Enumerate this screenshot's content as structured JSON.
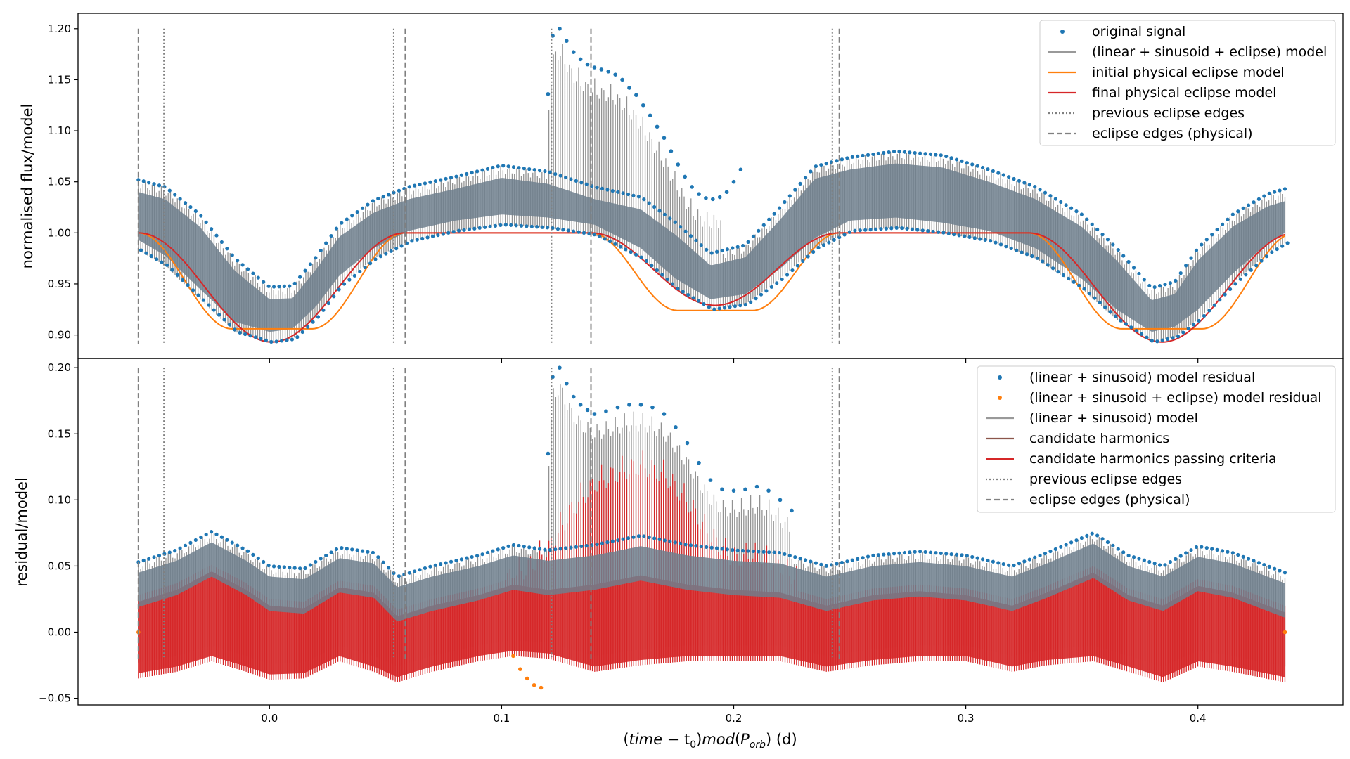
{
  "figure": {
    "xlabel": "(time − t₀)mod(P_orb) (d)",
    "xlabel_parts": {
      "pre": "(",
      "time": "time",
      "minus": " − t",
      "sub0": "0",
      "mid": ")",
      "mod": "mod",
      "open": "(",
      "P": "P",
      "orb": "orb",
      "close": ")",
      "unit": " (d)"
    }
  },
  "chart_data": [
    {
      "type": "line",
      "panel": "top",
      "ylabel": "normalised flux/model",
      "xlim": [
        -0.0825,
        0.4625
      ],
      "ylim": [
        0.877,
        1.215
      ],
      "xticks": [
        0.0,
        0.1,
        0.2,
        0.3,
        0.4
      ],
      "xtick_labels": [
        "0.0",
        "0.1",
        "0.2",
        "0.3",
        "0.4"
      ],
      "yticks": [
        0.9,
        0.95,
        1.0,
        1.05,
        1.1,
        1.15,
        1.2
      ],
      "ytick_labels": [
        "0.90",
        "0.95",
        "1.00",
        "1.05",
        "1.10",
        "1.15",
        "1.20"
      ],
      "grid": false,
      "legend_position": "top-right",
      "legend": [
        {
          "label": "original signal",
          "kind": "dot",
          "color": "#1f77b4"
        },
        {
          "label": "(linear + sinusoid + eclipse) model",
          "kind": "line",
          "color": "#999999"
        },
        {
          "label": "initial physical eclipse model",
          "kind": "line",
          "color": "#ff7f0e"
        },
        {
          "label": "final physical eclipse model",
          "kind": "line",
          "color": "#d62728"
        },
        {
          "label": "previous eclipse edges",
          "kind": "dotted",
          "color": "#808080"
        },
        {
          "label": "eclipse edges (physical)",
          "kind": "dashed",
          "color": "#808080"
        }
      ],
      "vlines_dotted": [
        -0.0455,
        0.0535,
        0.1215,
        0.2425
      ],
      "vlines_dashed": [
        -0.0565,
        0.0585,
        0.1385,
        0.2455
      ],
      "primary_eclipse": {
        "edges": [
          -0.0565,
          0.0585
        ],
        "center": 0.001,
        "depth_final": 0.107,
        "depth_initial": 0.094
      },
      "secondary_eclipse": {
        "edges": [
          0.1385,
          0.2455
        ],
        "center": 0.192,
        "depth_final": 0.071,
        "depth_initial": 0.076
      },
      "flux_envelope": {
        "x": [
          -0.0565,
          -0.045,
          -0.03,
          -0.015,
          0.0,
          0.01,
          0.02,
          0.03,
          0.045,
          0.06,
          0.08,
          0.1,
          0.12,
          0.14,
          0.16,
          0.175,
          0.19,
          0.205,
          0.22,
          0.235,
          0.25,
          0.27,
          0.29,
          0.31,
          0.33,
          0.35,
          0.365,
          0.38,
          0.39,
          0.4,
          0.415,
          0.43,
          0.4375
        ],
        "upper": [
          1.052,
          1.045,
          1.018,
          0.975,
          0.947,
          0.948,
          0.976,
          1.008,
          1.032,
          1.045,
          1.055,
          1.066,
          1.06,
          1.045,
          1.035,
          1.01,
          0.98,
          0.988,
          1.025,
          1.065,
          1.074,
          1.08,
          1.076,
          1.062,
          1.045,
          1.018,
          0.985,
          0.946,
          0.952,
          0.985,
          1.018,
          1.038,
          1.043
        ],
        "lower": [
          0.983,
          0.968,
          0.935,
          0.903,
          0.893,
          0.896,
          0.918,
          0.948,
          0.975,
          0.992,
          1.002,
          1.008,
          1.005,
          0.998,
          0.975,
          0.945,
          0.925,
          0.93,
          0.955,
          0.985,
          1.002,
          1.005,
          1.0,
          0.992,
          0.975,
          0.945,
          0.915,
          0.893,
          0.898,
          0.915,
          0.95,
          0.98,
          0.99
        ]
      },
      "flare": {
        "x": [
          0.12,
          0.122,
          0.125,
          0.128,
          0.131,
          0.134,
          0.137,
          0.14,
          0.143,
          0.146,
          0.149,
          0.152,
          0.155,
          0.158,
          0.161,
          0.164,
          0.167,
          0.17,
          0.173,
          0.176,
          0.179,
          0.182,
          0.185,
          0.188,
          0.191,
          0.194,
          0.197,
          0.2,
          0.203
        ],
        "y": [
          1.136,
          1.193,
          1.2,
          1.188,
          1.177,
          1.17,
          1.165,
          1.162,
          1.16,
          1.158,
          1.155,
          1.15,
          1.142,
          1.135,
          1.125,
          1.115,
          1.104,
          1.093,
          1.08,
          1.067,
          1.055,
          1.045,
          1.038,
          1.034,
          1.033,
          1.035,
          1.04,
          1.05,
          1.062
        ]
      }
    },
    {
      "type": "line",
      "panel": "bottom",
      "ylabel": "residual/model",
      "xlim": [
        -0.0825,
        0.4625
      ],
      "ylim": [
        -0.055,
        0.207
      ],
      "xticks": [
        0.0,
        0.1,
        0.2,
        0.3,
        0.4
      ],
      "xtick_labels": [
        "0.0",
        "0.1",
        "0.2",
        "0.3",
        "0.4"
      ],
      "yticks": [
        -0.05,
        0.0,
        0.05,
        0.1,
        0.15,
        0.2
      ],
      "ytick_labels": [
        "−0.05",
        "0.00",
        "0.05",
        "0.10",
        "0.15",
        "0.20"
      ],
      "grid": false,
      "legend_position": "top-right",
      "legend": [
        {
          "label": "(linear + sinusoid) model residual",
          "kind": "dot",
          "color": "#1f77b4"
        },
        {
          "label": "(linear + sinusoid + eclipse) model residual",
          "kind": "dot",
          "color": "#ff7f0e"
        },
        {
          "label": "(linear + sinusoid) model",
          "kind": "line",
          "color": "#999999"
        },
        {
          "label": "candidate harmonics",
          "kind": "line",
          "color": "#8c564b"
        },
        {
          "label": "candidate harmonics passing criteria",
          "kind": "line",
          "color": "#d62728"
        },
        {
          "label": "previous eclipse edges",
          "kind": "dotted",
          "color": "#808080"
        },
        {
          "label": "eclipse edges (physical)",
          "kind": "dashed",
          "color": "#808080"
        }
      ],
      "vlines_dotted": [
        -0.0455,
        0.0535,
        0.1215,
        0.2425
      ],
      "vlines_dashed": [
        -0.0565,
        0.0585,
        0.1385,
        0.2455
      ],
      "residual_envelope": {
        "x": [
          -0.0565,
          -0.04,
          -0.025,
          -0.01,
          0.0,
          0.015,
          0.03,
          0.045,
          0.055,
          0.07,
          0.09,
          0.105,
          0.12,
          0.14,
          0.16,
          0.18,
          0.2,
          0.22,
          0.24,
          0.26,
          0.28,
          0.3,
          0.32,
          0.335,
          0.355,
          0.37,
          0.385,
          0.4,
          0.415,
          0.4375
        ],
        "upper": [
          0.053,
          0.062,
          0.076,
          0.062,
          0.05,
          0.048,
          0.064,
          0.06,
          0.042,
          0.05,
          0.058,
          0.066,
          0.062,
          0.066,
          0.073,
          0.066,
          0.062,
          0.06,
          0.05,
          0.058,
          0.061,
          0.058,
          0.05,
          0.06,
          0.075,
          0.058,
          0.05,
          0.065,
          0.06,
          0.045
        ],
        "lower": [
          -0.035,
          -0.03,
          -0.022,
          -0.03,
          -0.036,
          -0.035,
          -0.022,
          -0.03,
          -0.038,
          -0.03,
          -0.022,
          -0.018,
          -0.02,
          -0.03,
          -0.025,
          -0.022,
          -0.022,
          -0.022,
          -0.03,
          -0.025,
          -0.022,
          -0.022,
          -0.03,
          -0.025,
          -0.022,
          -0.03,
          -0.038,
          -0.026,
          -0.03,
          -0.038
        ]
      },
      "red_excess": {
        "x": [
          0.102,
          0.11,
          0.12,
          0.13,
          0.14,
          0.15,
          0.16,
          0.17,
          0.18,
          0.19,
          0.2,
          0.21,
          0.22,
          0.228
        ],
        "upper": [
          0.052,
          0.06,
          0.075,
          0.105,
          0.125,
          0.133,
          0.139,
          0.132,
          0.112,
          0.085,
          0.068,
          0.072,
          0.064,
          0.052
        ]
      },
      "flare_residual": {
        "x": [
          0.12,
          0.122,
          0.125,
          0.128,
          0.131,
          0.134,
          0.137,
          0.14,
          0.145,
          0.15,
          0.155,
          0.16,
          0.165,
          0.17,
          0.175,
          0.18,
          0.185,
          0.19,
          0.195,
          0.2,
          0.205,
          0.21,
          0.215,
          0.22,
          0.225
        ],
        "y": [
          0.135,
          0.193,
          0.2,
          0.188,
          0.178,
          0.172,
          0.168,
          0.165,
          0.167,
          0.17,
          0.172,
          0.172,
          0.17,
          0.165,
          0.155,
          0.143,
          0.128,
          0.115,
          0.108,
          0.107,
          0.108,
          0.11,
          0.107,
          0.1,
          0.092
        ]
      },
      "orange_residual": {
        "x": [
          0.105,
          0.108,
          0.111,
          0.114,
          0.117
        ],
        "y": [
          -0.018,
          -0.028,
          -0.035,
          -0.04,
          -0.042
        ]
      }
    }
  ]
}
